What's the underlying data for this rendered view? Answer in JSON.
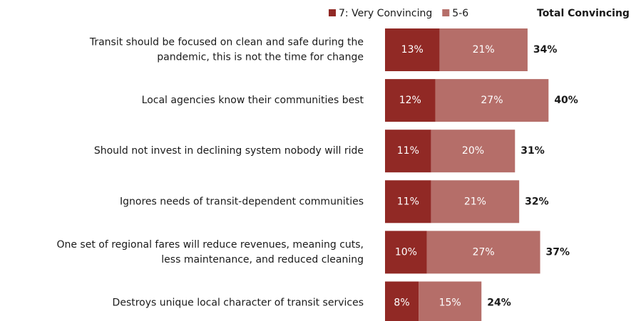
{
  "chart_data": {
    "type": "stacked-bar-horizontal",
    "categories": [
      [
        "Transit should be focused on clean and safe during the",
        "pandemic, this is not the time for change"
      ],
      [
        "Local agencies know their communities best"
      ],
      [
        "Should not invest in declining system nobody will ride"
      ],
      [
        "Ignores needs of transit-dependent communities"
      ],
      [
        "One set of regional fares will reduce revenues, meaning cuts,",
        "less maintenance, and reduced cleaning"
      ],
      [
        "Destroys unique local character of transit services"
      ]
    ],
    "series": [
      {
        "name": "7: Very Convincing",
        "color": "#912925",
        "values": [
          13,
          12,
          11,
          11,
          10,
          8
        ],
        "value_labels": [
          "13%",
          "12%",
          "11%",
          "11%",
          "10%",
          "8%"
        ]
      },
      {
        "name": "5-6",
        "color": "#b56e69",
        "values": [
          21,
          27,
          20,
          21,
          27,
          15
        ],
        "value_labels": [
          "21%",
          "27%",
          "20%",
          "21%",
          "27%",
          "15%"
        ]
      }
    ],
    "totals": {
      "name": "Total Convincing",
      "values": [
        34,
        40,
        31,
        32,
        37,
        24
      ],
      "value_labels": [
        "34%",
        "40%",
        "31%",
        "32%",
        "37%",
        "24%"
      ]
    }
  }
}
